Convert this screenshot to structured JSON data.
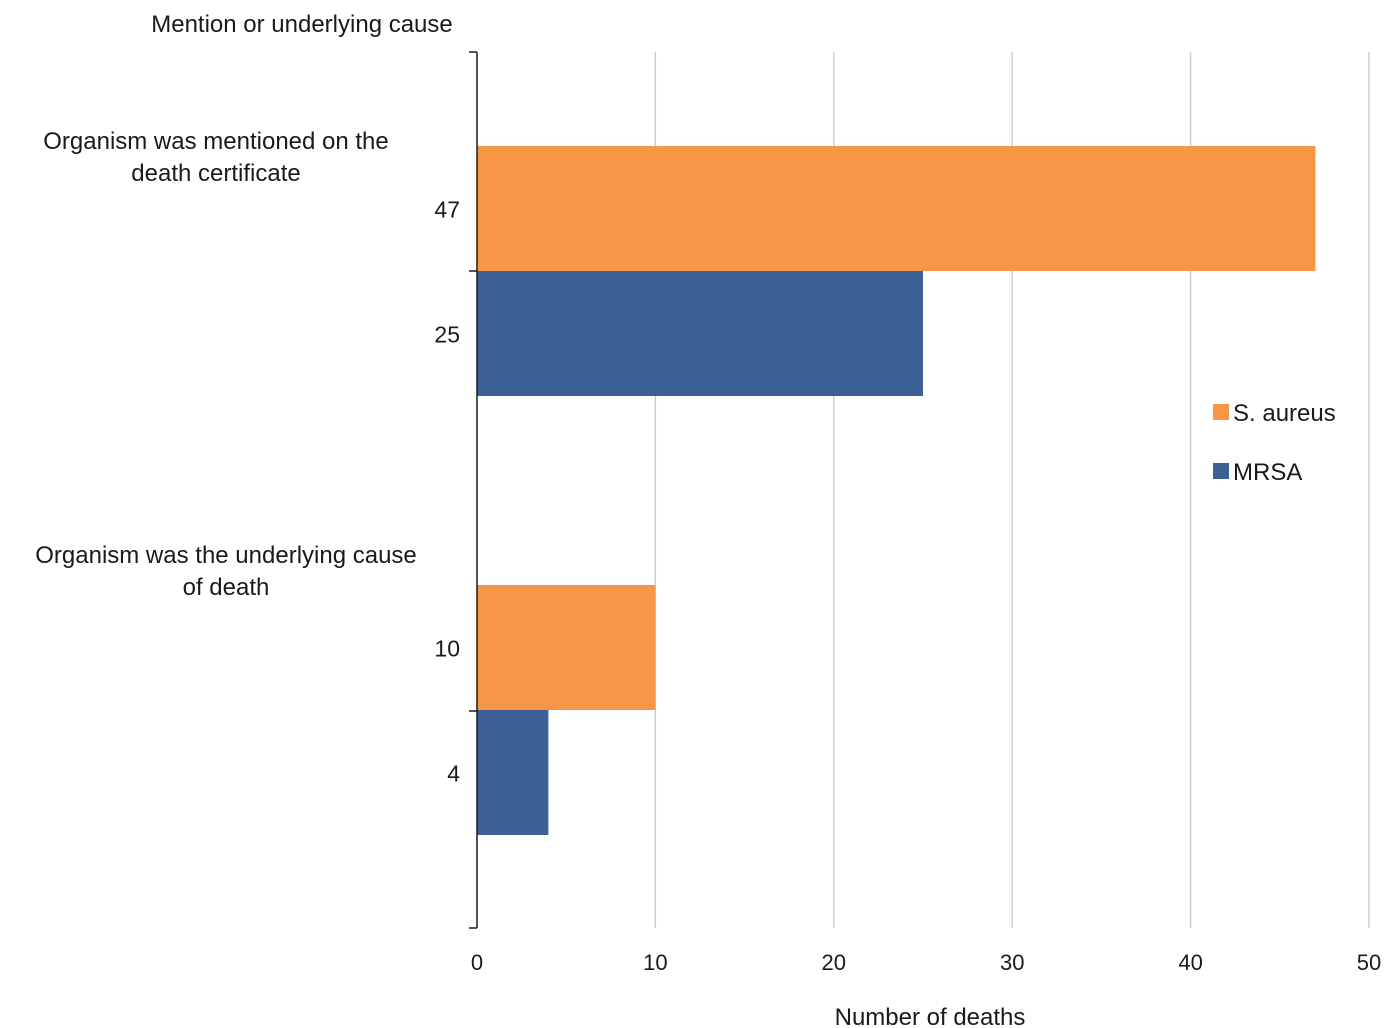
{
  "chart_data": {
    "type": "bar",
    "orientation": "horizontal",
    "title": "",
    "ylabel": "Mention or underlying cause",
    "xlabel": "Number of deaths",
    "categories": [
      "Organism was mentioned on the death certificate",
      "Organism was the underlying cause of death"
    ],
    "category_lines": [
      [
        "Organism was mentioned on the",
        "death certificate"
      ],
      [
        "Organism was the underlying cause",
        "of death"
      ]
    ],
    "series": [
      {
        "name": "S. aureus",
        "color": "#f79646",
        "values": [
          47,
          10
        ]
      },
      {
        "name": "MRSA",
        "color": "#3c6094",
        "values": [
          25,
          4
        ]
      }
    ],
    "xlim": [
      0,
      50
    ],
    "xticks": [
      "0",
      "10",
      "20",
      "30",
      "40",
      "50"
    ],
    "grid": "vertical",
    "legend_position": "right",
    "data_labels": "left of axis"
  }
}
